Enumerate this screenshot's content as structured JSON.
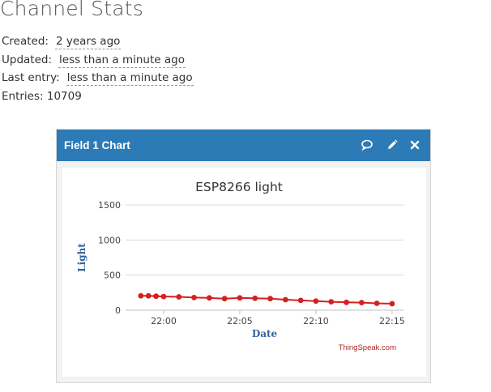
{
  "page": {
    "title": "Channel Stats"
  },
  "stats": [
    {
      "label": "Created:",
      "value": "2 years ago"
    },
    {
      "label": "Updated:",
      "value": "less than a minute ago"
    },
    {
      "label": "Last entry:",
      "value": "less than a minute ago"
    }
  ],
  "entries": {
    "label": "Entries:",
    "value": "10709"
  },
  "widget": {
    "title": "Field 1 Chart",
    "icons": [
      "comment-icon",
      "pencil-icon",
      "close-icon"
    ]
  },
  "chart_data": {
    "type": "line",
    "title": "ESP8266 light",
    "xlabel": "Date",
    "ylabel": "Light",
    "credit": "ThingSpeak.com",
    "x_tick_labels": [
      "22:00",
      "22:05",
      "22:10",
      "22:15"
    ],
    "y_tick_labels": [
      "0",
      "500",
      "1000",
      "1500"
    ],
    "ylim": [
      0,
      1500
    ],
    "grid": true,
    "series": [
      {
        "color": "#d62020",
        "x": [
          "21:58:30",
          "21:59:00",
          "21:59:30",
          "22:00:00",
          "22:01:00",
          "22:02:00",
          "22:03:00",
          "22:04:00",
          "22:05:00",
          "22:06:00",
          "22:07:00",
          "22:08:00",
          "22:09:00",
          "22:10:00",
          "22:11:00",
          "22:12:00",
          "22:13:00",
          "22:14:00",
          "22:15:00"
        ],
        "values": [
          205,
          205,
          200,
          195,
          190,
          180,
          175,
          165,
          175,
          170,
          165,
          150,
          140,
          130,
          120,
          112,
          108,
          98,
          92
        ]
      }
    ]
  }
}
